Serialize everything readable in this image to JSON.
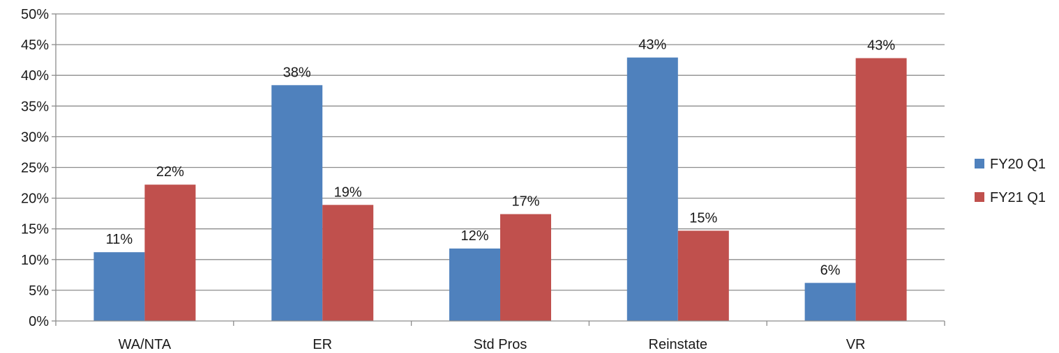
{
  "chart_data": {
    "type": "bar",
    "title": "",
    "xlabel": "",
    "ylabel": "",
    "categories": [
      "WA/NTA",
      "ER",
      "Std Pros",
      "Reinstate",
      "VR"
    ],
    "series": [
      {
        "name": "FY20 Q1",
        "color": "#4f81bd",
        "values": [
          11.2,
          38.4,
          11.8,
          42.9,
          6.2
        ],
        "labels": [
          "11%",
          "38%",
          "12%",
          "43%",
          "6%"
        ]
      },
      {
        "name": "FY21 Q1",
        "color": "#c0504d",
        "values": [
          22.2,
          18.9,
          17.4,
          14.7,
          42.8
        ],
        "labels": [
          "22%",
          "19%",
          "17%",
          "15%",
          "43%"
        ]
      }
    ],
    "ylim": [
      0,
      50
    ],
    "yticks": [
      0,
      5,
      10,
      15,
      20,
      25,
      30,
      35,
      40,
      45,
      50
    ],
    "ytick_labels": [
      "0%",
      "5%",
      "10%",
      "15%",
      "20%",
      "25%",
      "30%",
      "35%",
      "40%",
      "45%",
      "50%"
    ],
    "grid": true,
    "legend_position": "right"
  }
}
